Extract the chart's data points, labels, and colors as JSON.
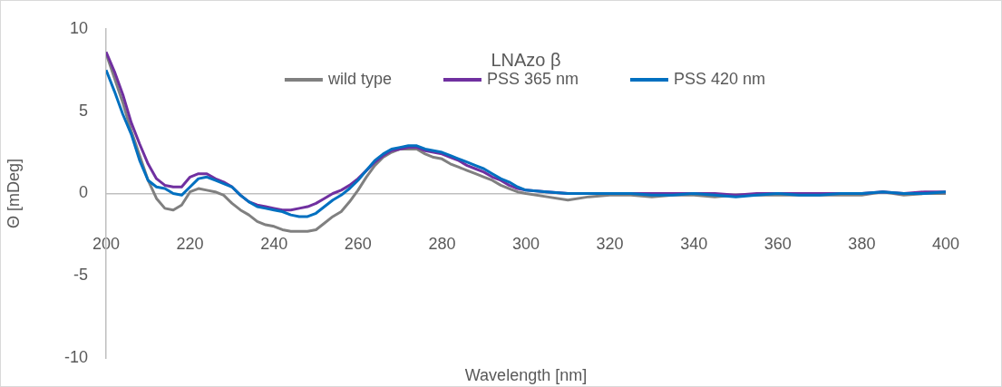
{
  "chart_data": {
    "type": "line",
    "title": "LNAzo β",
    "xlabel": "Wavelength [nm]",
    "ylabel": "Θ [mDeg]",
    "x": [
      200,
      202,
      204,
      206,
      208,
      210,
      212,
      214,
      216,
      218,
      220,
      222,
      224,
      226,
      228,
      230,
      232,
      234,
      236,
      238,
      240,
      242,
      244,
      246,
      248,
      250,
      252,
      254,
      256,
      258,
      260,
      262,
      264,
      266,
      268,
      270,
      272,
      274,
      276,
      278,
      280,
      282,
      284,
      286,
      288,
      290,
      292,
      294,
      296,
      298,
      300,
      305,
      310,
      315,
      320,
      325,
      330,
      335,
      340,
      345,
      350,
      355,
      360,
      365,
      370,
      375,
      380,
      385,
      390,
      395,
      400
    ],
    "series": [
      {
        "name": "wild type",
        "color": "#808080",
        "values": [
          8.5,
          7.0,
          5.5,
          3.8,
          2.3,
          0.8,
          -0.3,
          -0.9,
          -1.0,
          -0.7,
          0.1,
          0.3,
          0.2,
          0.1,
          -0.1,
          -0.6,
          -1.0,
          -1.3,
          -1.7,
          -1.9,
          -2.0,
          -2.2,
          -2.3,
          -2.3,
          -2.3,
          -2.2,
          -1.8,
          -1.4,
          -1.1,
          -0.5,
          0.2,
          1.0,
          1.7,
          2.2,
          2.5,
          2.7,
          2.7,
          2.7,
          2.4,
          2.2,
          2.1,
          1.8,
          1.6,
          1.4,
          1.2,
          1.0,
          0.8,
          0.5,
          0.3,
          0.1,
          0.0,
          -0.2,
          -0.4,
          -0.2,
          -0.1,
          -0.1,
          -0.2,
          -0.1,
          -0.1,
          -0.2,
          -0.1,
          -0.1,
          -0.1,
          -0.1,
          -0.1,
          -0.1,
          -0.1,
          0.1,
          -0.1,
          0.0,
          0.0
        ]
      },
      {
        "name": "PSS 365 nm",
        "color": "#7030a0",
        "values": [
          8.6,
          7.4,
          6.0,
          4.3,
          3.0,
          1.8,
          0.9,
          0.5,
          0.4,
          0.4,
          1.0,
          1.2,
          1.2,
          0.9,
          0.7,
          0.4,
          -0.1,
          -0.5,
          -0.7,
          -0.8,
          -0.9,
          -1.0,
          -1.0,
          -0.9,
          -0.8,
          -0.6,
          -0.3,
          0.0,
          0.2,
          0.5,
          0.9,
          1.4,
          1.9,
          2.3,
          2.6,
          2.7,
          2.8,
          2.8,
          2.6,
          2.5,
          2.4,
          2.2,
          2.0,
          1.7,
          1.5,
          1.3,
          1.0,
          0.8,
          0.5,
          0.3,
          0.2,
          0.1,
          0.0,
          0.0,
          0.0,
          0.0,
          0.0,
          0.0,
          0.0,
          0.0,
          -0.1,
          0.0,
          0.0,
          0.0,
          0.0,
          0.0,
          0.0,
          0.1,
          0.0,
          0.1,
          0.1
        ]
      },
      {
        "name": "PSS 420 nm",
        "color": "#0070c0",
        "values": [
          7.5,
          6.2,
          4.8,
          3.6,
          2.0,
          0.8,
          0.4,
          0.3,
          0.0,
          -0.1,
          0.4,
          0.9,
          1.0,
          0.8,
          0.6,
          0.4,
          -0.1,
          -0.5,
          -0.8,
          -0.9,
          -1.0,
          -1.1,
          -1.3,
          -1.4,
          -1.4,
          -1.2,
          -0.8,
          -0.4,
          -0.1,
          0.3,
          0.8,
          1.4,
          2.0,
          2.4,
          2.7,
          2.8,
          2.9,
          2.9,
          2.7,
          2.6,
          2.5,
          2.3,
          2.1,
          1.9,
          1.7,
          1.5,
          1.2,
          0.9,
          0.7,
          0.4,
          0.2,
          0.1,
          0.0,
          0.0,
          0.0,
          0.0,
          -0.1,
          -0.1,
          0.0,
          -0.1,
          -0.2,
          -0.1,
          0.0,
          -0.1,
          -0.1,
          0.0,
          0.0,
          0.1,
          0.0,
          0.0,
          0.1
        ]
      }
    ],
    "xlim": [
      200,
      400
    ],
    "xticks": [
      200,
      220,
      240,
      260,
      280,
      300,
      320,
      340,
      360,
      380,
      400
    ],
    "ylim": [
      -10,
      10
    ],
    "yticks": [
      -10,
      -5,
      0,
      5,
      10
    ],
    "legend": "top",
    "marker": "none",
    "line_style": "solid"
  }
}
